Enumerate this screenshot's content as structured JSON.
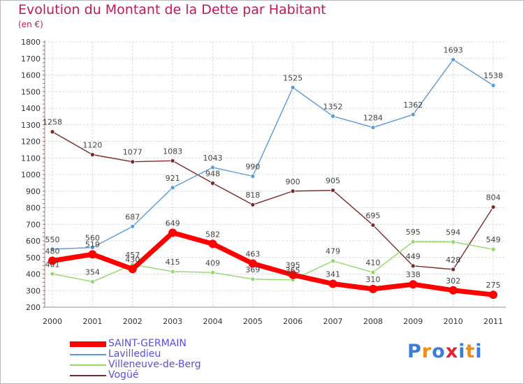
{
  "title": "Evolution du Montant de la Dette par Habitant",
  "unit": "(en €)",
  "brand": {
    "text": "Proxiti",
    "colors": [
      "#3b7dd8",
      "#f08c1a",
      "#3b7dd8",
      "#e4242c",
      "#3b7dd8",
      "#f08c1a",
      "#3b7dd8"
    ]
  },
  "chart_data": {
    "type": "line",
    "x": [
      "2000",
      "2001",
      "2002",
      "2003",
      "2004",
      "2005",
      "2006",
      "2007",
      "2008",
      "2009",
      "2010",
      "2011"
    ],
    "ylim": [
      200,
      1800
    ],
    "yticks": [
      "200",
      "300",
      "400",
      "500",
      "600",
      "700",
      "800",
      "900",
      "1000",
      "1100",
      "1200",
      "1300",
      "1400",
      "1500",
      "1600",
      "1700",
      "1800"
    ],
    "grid": true,
    "legend_position": "bottom-left",
    "series": [
      {
        "name": "SAINT-GERMAIN",
        "color": "#ff0000",
        "values": [
          480,
          519,
          430,
          649,
          582,
          463,
          395,
          341,
          310,
          338,
          302,
          275
        ]
      },
      {
        "name": "Lavilledieu",
        "color": "#5b9bd5",
        "values": [
          550,
          560,
          687,
          921,
          1043,
          990,
          1525,
          1352,
          1284,
          1362,
          1693,
          1538
        ]
      },
      {
        "name": "Villeneuve-de-Berg",
        "color": "#90d86a",
        "values": [
          401,
          354,
          457,
          415,
          409,
          369,
          365,
          479,
          410,
          595,
          594,
          549
        ]
      },
      {
        "name": "Vogüé",
        "color": "#7a2a2a",
        "values": [
          1258,
          1120,
          1077,
          1083,
          948,
          818,
          900,
          905,
          695,
          449,
          428,
          804
        ]
      }
    ]
  }
}
